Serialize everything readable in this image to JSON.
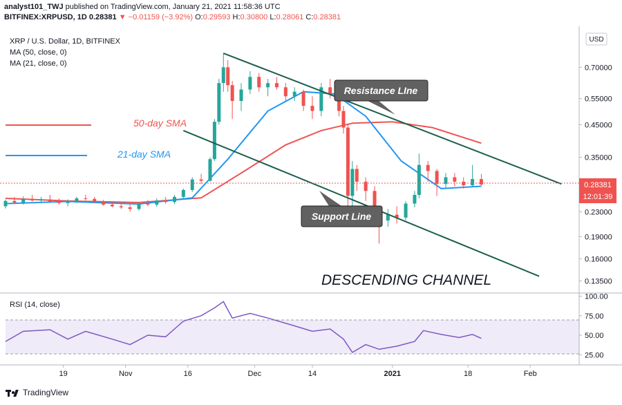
{
  "header": {
    "line1_user": "analyst101_TWJ",
    "line1_rest": "published on TradingView.com, January 21, 2021 11:58:36 UTC",
    "symbol": "BITFINEX:XRPUSD, 1D",
    "last": "0.28381",
    "change": "−0.01159 (−3.92%)",
    "o_label": "O:",
    "o": "0.29593",
    "h_label": "H:",
    "h": "0.30800",
    "l_label": "L:",
    "l": "0.28061",
    "c_label": "C:",
    "c": "0.28381"
  },
  "legend": {
    "title": "XRP / U.S. Dollar, 1D, BITFINEX",
    "ma50": "MA (50, close, 0)",
    "ma21": "MA (21, close, 0)"
  },
  "currency": "USD",
  "price_badge": {
    "value": "0.28381",
    "countdown": "12:01:39"
  },
  "annotations": {
    "resistance": "Resistance LIne",
    "support": "Support Line",
    "sma50": "50-day SMA",
    "sma21": "21-day SMA",
    "channel": "DESCENDING CHANNEL"
  },
  "rsi_label": "RSI (14, close)",
  "brand": "TradingView",
  "colors": {
    "up": "#26a69a",
    "down": "#ef5350",
    "ma50": "#ef5350",
    "ma21": "#2196f3",
    "rsi": "#7e57c2",
    "channel": "#1b5e4b"
  },
  "chart_data": {
    "type": "candlestick",
    "title": "XRP / U.S. Dollar, 1D, BITFINEX",
    "y_scale": "log",
    "y_ticks": [
      0.135,
      0.16,
      0.19,
      0.23,
      0.35,
      0.45,
      0.55,
      0.7
    ],
    "y_ticks_text": [
      "0.13500",
      "0.16000",
      "0.19000",
      "0.23000",
      "0.35000",
      "0.45000",
      "0.55000",
      "0.70000"
    ],
    "x_ticks": [
      "19",
      "Nov",
      "16",
      "Dec",
      "14",
      "2021",
      "18",
      "Feb"
    ],
    "x_ticks_date": [
      "2020-10-19",
      "2020-11-02",
      "2020-11-16",
      "2020-12-01",
      "2020-12-14",
      "2021-01-01",
      "2021-01-18",
      "2021-02-01"
    ],
    "x_range": [
      "2020-10-06",
      "2021-02-12"
    ],
    "candles": [
      {
        "t": "2020-10-06",
        "o": 0.24,
        "h": 0.253,
        "l": 0.236,
        "c": 0.25
      },
      {
        "t": "2020-10-08",
        "o": 0.25,
        "h": 0.258,
        "l": 0.244,
        "c": 0.247
      },
      {
        "t": "2020-10-10",
        "o": 0.247,
        "h": 0.259,
        "l": 0.243,
        "c": 0.254
      },
      {
        "t": "2020-10-12",
        "o": 0.254,
        "h": 0.262,
        "l": 0.249,
        "c": 0.251
      },
      {
        "t": "2020-10-14",
        "o": 0.251,
        "h": 0.258,
        "l": 0.246,
        "c": 0.253
      },
      {
        "t": "2020-10-16",
        "o": 0.253,
        "h": 0.262,
        "l": 0.249,
        "c": 0.249
      },
      {
        "t": "2020-10-18",
        "o": 0.249,
        "h": 0.255,
        "l": 0.243,
        "c": 0.246
      },
      {
        "t": "2020-10-20",
        "o": 0.246,
        "h": 0.253,
        "l": 0.24,
        "c": 0.25
      },
      {
        "t": "2020-10-22",
        "o": 0.25,
        "h": 0.258,
        "l": 0.246,
        "c": 0.255
      },
      {
        "t": "2020-10-24",
        "o": 0.255,
        "h": 0.262,
        "l": 0.251,
        "c": 0.254
      },
      {
        "t": "2020-10-26",
        "o": 0.254,
        "h": 0.258,
        "l": 0.246,
        "c": 0.248
      },
      {
        "t": "2020-10-28",
        "o": 0.248,
        "h": 0.252,
        "l": 0.241,
        "c": 0.243
      },
      {
        "t": "2020-10-30",
        "o": 0.243,
        "h": 0.249,
        "l": 0.238,
        "c": 0.24
      },
      {
        "t": "2020-11-01",
        "o": 0.24,
        "h": 0.246,
        "l": 0.235,
        "c": 0.238
      },
      {
        "t": "2020-11-03",
        "o": 0.238,
        "h": 0.244,
        "l": 0.23,
        "c": 0.235
      },
      {
        "t": "2020-11-05",
        "o": 0.235,
        "h": 0.248,
        "l": 0.232,
        "c": 0.245
      },
      {
        "t": "2020-11-07",
        "o": 0.245,
        "h": 0.252,
        "l": 0.24,
        "c": 0.243
      },
      {
        "t": "2020-11-09",
        "o": 0.243,
        "h": 0.255,
        "l": 0.239,
        "c": 0.251
      },
      {
        "t": "2020-11-11",
        "o": 0.251,
        "h": 0.258,
        "l": 0.245,
        "c": 0.248
      },
      {
        "t": "2020-11-13",
        "o": 0.248,
        "h": 0.262,
        "l": 0.244,
        "c": 0.258
      },
      {
        "t": "2020-11-15",
        "o": 0.258,
        "h": 0.275,
        "l": 0.254,
        "c": 0.272
      },
      {
        "t": "2020-11-17",
        "o": 0.272,
        "h": 0.3,
        "l": 0.268,
        "c": 0.295
      },
      {
        "t": "2020-11-19",
        "o": 0.295,
        "h": 0.308,
        "l": 0.285,
        "c": 0.292
      },
      {
        "t": "2020-11-21",
        "o": 0.292,
        "h": 0.35,
        "l": 0.29,
        "c": 0.345
      },
      {
        "t": "2020-11-22",
        "o": 0.345,
        "h": 0.47,
        "l": 0.34,
        "c": 0.46
      },
      {
        "t": "2020-11-23",
        "o": 0.46,
        "h": 0.64,
        "l": 0.45,
        "c": 0.62
      },
      {
        "t": "2020-11-24",
        "o": 0.62,
        "h": 0.78,
        "l": 0.58,
        "c": 0.7
      },
      {
        "t": "2020-11-25",
        "o": 0.7,
        "h": 0.74,
        "l": 0.58,
        "c": 0.61
      },
      {
        "t": "2020-11-26",
        "o": 0.61,
        "h": 0.63,
        "l": 0.47,
        "c": 0.54
      },
      {
        "t": "2020-11-28",
        "o": 0.54,
        "h": 0.62,
        "l": 0.5,
        "c": 0.59
      },
      {
        "t": "2020-11-30",
        "o": 0.59,
        "h": 0.68,
        "l": 0.57,
        "c": 0.65
      },
      {
        "t": "2020-12-02",
        "o": 0.65,
        "h": 0.67,
        "l": 0.58,
        "c": 0.6
      },
      {
        "t": "2020-12-04",
        "o": 0.6,
        "h": 0.64,
        "l": 0.56,
        "c": 0.62
      },
      {
        "t": "2020-12-06",
        "o": 0.62,
        "h": 0.65,
        "l": 0.59,
        "c": 0.6
      },
      {
        "t": "2020-12-08",
        "o": 0.6,
        "h": 0.62,
        "l": 0.54,
        "c": 0.56
      },
      {
        "t": "2020-12-10",
        "o": 0.56,
        "h": 0.6,
        "l": 0.54,
        "c": 0.58
      },
      {
        "t": "2020-12-12",
        "o": 0.58,
        "h": 0.59,
        "l": 0.5,
        "c": 0.52
      },
      {
        "t": "2020-12-14",
        "o": 0.52,
        "h": 0.56,
        "l": 0.47,
        "c": 0.5
      },
      {
        "t": "2020-12-16",
        "o": 0.5,
        "h": 0.62,
        "l": 0.48,
        "c": 0.6
      },
      {
        "t": "2020-12-18",
        "o": 0.6,
        "h": 0.64,
        "l": 0.55,
        "c": 0.57
      },
      {
        "t": "2020-12-20",
        "o": 0.57,
        "h": 0.59,
        "l": 0.48,
        "c": 0.5
      },
      {
        "t": "2020-12-21",
        "o": 0.5,
        "h": 0.52,
        "l": 0.42,
        "c": 0.44
      },
      {
        "t": "2020-12-22",
        "o": 0.44,
        "h": 0.45,
        "l": 0.23,
        "c": 0.26
      },
      {
        "t": "2020-12-23",
        "o": 0.26,
        "h": 0.34,
        "l": 0.23,
        "c": 0.32
      },
      {
        "t": "2020-12-24",
        "o": 0.32,
        "h": 0.33,
        "l": 0.27,
        "c": 0.29
      },
      {
        "t": "2020-12-26",
        "o": 0.29,
        "h": 0.3,
        "l": 0.25,
        "c": 0.27
      },
      {
        "t": "2020-12-28",
        "o": 0.27,
        "h": 0.28,
        "l": 0.21,
        "c": 0.23
      },
      {
        "t": "2020-12-29",
        "o": 0.23,
        "h": 0.24,
        "l": 0.18,
        "c": 0.215
      },
      {
        "t": "2020-12-31",
        "o": 0.215,
        "h": 0.235,
        "l": 0.205,
        "c": 0.225
      },
      {
        "t": "2021-01-02",
        "o": 0.225,
        "h": 0.24,
        "l": 0.21,
        "c": 0.22
      },
      {
        "t": "2021-01-04",
        "o": 0.22,
        "h": 0.25,
        "l": 0.215,
        "c": 0.245
      },
      {
        "t": "2021-01-06",
        "o": 0.245,
        "h": 0.27,
        "l": 0.238,
        "c": 0.262
      },
      {
        "t": "2021-01-07",
        "o": 0.262,
        "h": 0.36,
        "l": 0.255,
        "c": 0.33
      },
      {
        "t": "2021-01-09",
        "o": 0.33,
        "h": 0.34,
        "l": 0.29,
        "c": 0.315
      },
      {
        "t": "2021-01-11",
        "o": 0.315,
        "h": 0.32,
        "l": 0.26,
        "c": 0.285
      },
      {
        "t": "2021-01-13",
        "o": 0.285,
        "h": 0.31,
        "l": 0.275,
        "c": 0.3
      },
      {
        "t": "2021-01-15",
        "o": 0.3,
        "h": 0.31,
        "l": 0.28,
        "c": 0.29
      },
      {
        "t": "2021-01-17",
        "o": 0.29,
        "h": 0.3,
        "l": 0.275,
        "c": 0.282
      },
      {
        "t": "2021-01-19",
        "o": 0.282,
        "h": 0.33,
        "l": 0.28,
        "c": 0.296
      },
      {
        "t": "2021-01-21",
        "o": 0.2959,
        "h": 0.308,
        "l": 0.2806,
        "c": 0.2838
      }
    ],
    "series": [
      {
        "name": "MA (50, close, 0)",
        "color": "#ef5350",
        "points": [
          {
            "t": "2020-10-06",
            "v": 0.255
          },
          {
            "t": "2020-10-20",
            "v": 0.25
          },
          {
            "t": "2020-11-05",
            "v": 0.247
          },
          {
            "t": "2020-11-19",
            "v": 0.256
          },
          {
            "t": "2020-11-28",
            "v": 0.31
          },
          {
            "t": "2020-12-08",
            "v": 0.385
          },
          {
            "t": "2020-12-16",
            "v": 0.43
          },
          {
            "t": "2020-12-23",
            "v": 0.455
          },
          {
            "t": "2021-01-01",
            "v": 0.46
          },
          {
            "t": "2021-01-10",
            "v": 0.44
          },
          {
            "t": "2021-01-21",
            "v": 0.39
          }
        ]
      },
      {
        "name": "MA (21, close, 0)",
        "color": "#2196f3",
        "points": [
          {
            "t": "2020-10-06",
            "v": 0.245
          },
          {
            "t": "2020-10-20",
            "v": 0.249
          },
          {
            "t": "2020-11-05",
            "v": 0.244
          },
          {
            "t": "2020-11-17",
            "v": 0.256
          },
          {
            "t": "2020-11-25",
            "v": 0.345
          },
          {
            "t": "2020-12-04",
            "v": 0.5
          },
          {
            "t": "2020-12-12",
            "v": 0.58
          },
          {
            "t": "2020-12-19",
            "v": 0.57
          },
          {
            "t": "2020-12-26",
            "v": 0.48
          },
          {
            "t": "2021-01-03",
            "v": 0.34
          },
          {
            "t": "2021-01-12",
            "v": 0.275
          },
          {
            "t": "2021-01-21",
            "v": 0.28
          }
        ]
      }
    ],
    "rsi": {
      "ticks": [
        25,
        50,
        75,
        100
      ],
      "ticks_text": [
        "25.00",
        "50.00",
        "75.00",
        "100.00"
      ],
      "band": [
        30,
        70
      ],
      "points": [
        {
          "t": "2020-10-06",
          "v": 42
        },
        {
          "t": "2020-10-10",
          "v": 55
        },
        {
          "t": "2020-10-16",
          "v": 57
        },
        {
          "t": "2020-10-20",
          "v": 45
        },
        {
          "t": "2020-10-24",
          "v": 55
        },
        {
          "t": "2020-10-30",
          "v": 45
        },
        {
          "t": "2020-11-03",
          "v": 38
        },
        {
          "t": "2020-11-07",
          "v": 50
        },
        {
          "t": "2020-11-11",
          "v": 48
        },
        {
          "t": "2020-11-15",
          "v": 68
        },
        {
          "t": "2020-11-19",
          "v": 75
        },
        {
          "t": "2020-11-22",
          "v": 85
        },
        {
          "t": "2020-11-24",
          "v": 93
        },
        {
          "t": "2020-11-26",
          "v": 72
        },
        {
          "t": "2020-11-30",
          "v": 78
        },
        {
          "t": "2020-12-04",
          "v": 72
        },
        {
          "t": "2020-12-10",
          "v": 62
        },
        {
          "t": "2020-12-14",
          "v": 55
        },
        {
          "t": "2020-12-18",
          "v": 58
        },
        {
          "t": "2020-12-21",
          "v": 45
        },
        {
          "t": "2020-12-23",
          "v": 28
        },
        {
          "t": "2020-12-26",
          "v": 38
        },
        {
          "t": "2020-12-29",
          "v": 32
        },
        {
          "t": "2021-01-02",
          "v": 36
        },
        {
          "t": "2021-01-06",
          "v": 42
        },
        {
          "t": "2021-01-08",
          "v": 56
        },
        {
          "t": "2021-01-12",
          "v": 51
        },
        {
          "t": "2021-01-16",
          "v": 47
        },
        {
          "t": "2021-01-19",
          "v": 51
        },
        {
          "t": "2021-01-21",
          "v": 46
        }
      ]
    },
    "trend_lines": [
      {
        "name": "Resistance LIne",
        "from": {
          "t": "2020-11-24",
          "v": 0.78
        },
        "to": {
          "t": "2021-02-08",
          "v": 0.285
        }
      },
      {
        "name": "Support Line",
        "from": {
          "t": "2020-11-15",
          "v": 0.43
        },
        "to": {
          "t": "2021-02-03",
          "v": 0.14
        }
      }
    ],
    "last_price": 0.28381
  }
}
